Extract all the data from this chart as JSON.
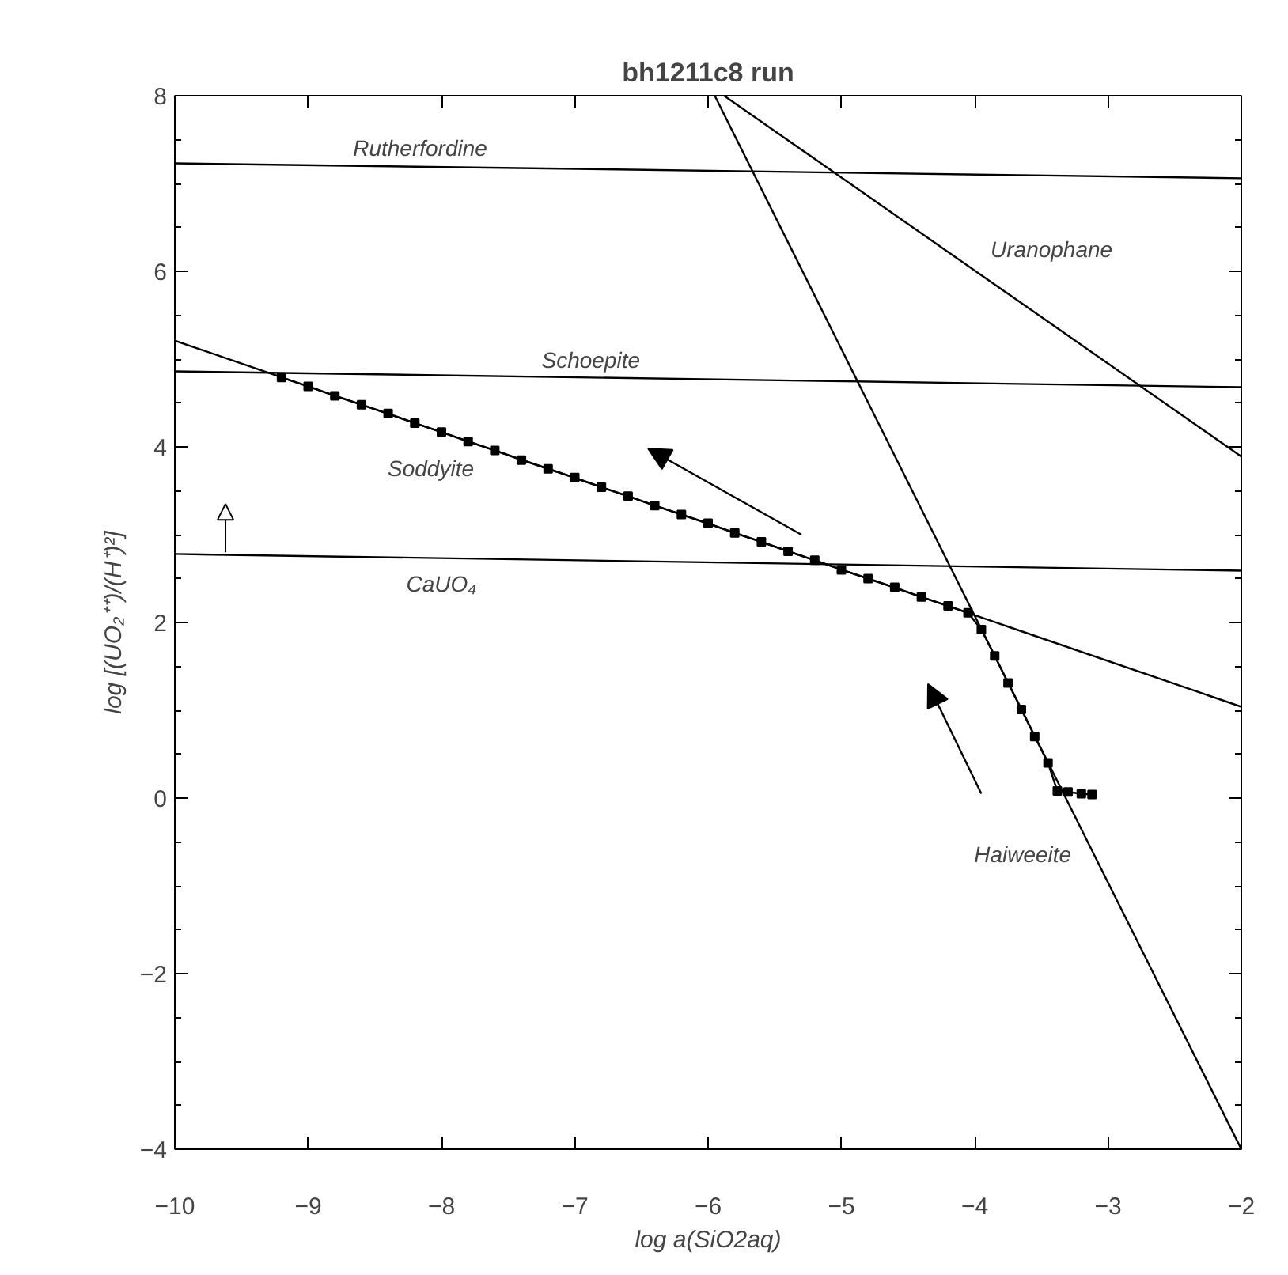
{
  "chart_data": {
    "type": "line",
    "title": "bh1211c8 run",
    "xlabel": "log a(SiO2aq)",
    "ylabel": "log [(UO₂⁺⁺)/(H⁺)²]",
    "xlim": [
      -10,
      -2
    ],
    "ylim": [
      -4,
      8
    ],
    "xticks": [
      -10,
      -9,
      -8,
      -7,
      -6,
      -5,
      -4,
      -3,
      -2
    ],
    "yticks": [
      -4,
      -2,
      0,
      2,
      4,
      6,
      8
    ],
    "grid": false,
    "line_style": "solid",
    "series": [
      {
        "name": "Rutherfordine",
        "color": "#000000",
        "marker": "none",
        "x": [
          -10,
          -2
        ],
        "values": [
          7.23,
          7.06
        ]
      },
      {
        "name": "Schoepite",
        "color": "#000000",
        "marker": "none",
        "x": [
          -10,
          -2
        ],
        "values": [
          4.86,
          4.68
        ]
      },
      {
        "name": "CaUO₄",
        "color": "#000000",
        "marker": "none",
        "x": [
          -10,
          -2
        ],
        "values": [
          2.78,
          2.59
        ]
      },
      {
        "name": "Soddyite",
        "color": "#000000",
        "marker": "none",
        "x": [
          -10,
          -2
        ],
        "values": [
          5.21,
          1.04
        ]
      },
      {
        "name": "Haiweeite",
        "color": "#000000",
        "marker": "none",
        "x": [
          -5.95,
          -2
        ],
        "values": [
          8,
          -4
        ]
      },
      {
        "name": "Uranophane",
        "color": "#000000",
        "marker": "none",
        "x": [
          -5.88,
          -2
        ],
        "values": [
          8,
          3.89
        ]
      },
      {
        "color": "#000000",
        "marker": "square",
        "x": [
          -9.2,
          -9.0,
          -8.8,
          -8.6,
          -8.4,
          -8.2,
          -8.0,
          -7.8,
          -7.6,
          -7.4,
          -7.2,
          -7.0,
          -6.8,
          -6.6,
          -6.4,
          -6.2,
          -6.0,
          -5.8,
          -5.6,
          -5.4,
          -5.2,
          -5.0,
          -4.8,
          -4.6,
          -4.4,
          -4.2,
          -4.05,
          -3.95,
          -3.85,
          -3.75,
          -3.65,
          -3.55,
          -3.45,
          -3.38,
          -3.3,
          -3.2,
          -3.12
        ],
        "values": [
          4.79,
          4.69,
          4.58,
          4.48,
          4.38,
          4.27,
          4.17,
          4.06,
          3.96,
          3.85,
          3.75,
          3.65,
          3.54,
          3.44,
          3.33,
          3.23,
          3.13,
          3.02,
          2.92,
          2.81,
          2.71,
          2.6,
          2.5,
          2.4,
          2.29,
          2.19,
          2.11,
          1.92,
          1.62,
          1.31,
          1.01,
          0.7,
          0.4,
          0.08,
          0.07,
          0.05,
          0.04
        ]
      }
    ]
  }
}
